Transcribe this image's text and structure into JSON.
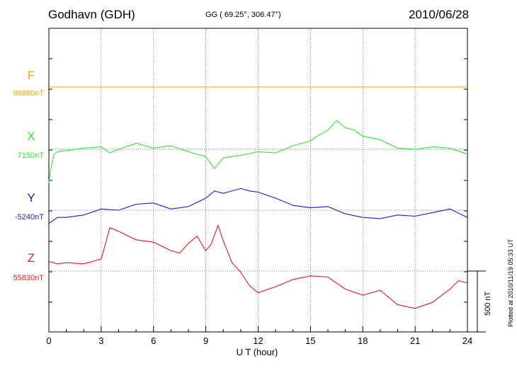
{
  "header": {
    "station": "Godhavn (GDH)",
    "coords": "GG ( 69.25°, 306.47°)",
    "date": "2010/06/28"
  },
  "footer": {
    "plotted": "Plotted at 2010/11/19 05:33 UT",
    "scale_bar": "500 nT"
  },
  "colors": {
    "F": "#f2a900",
    "X": "#33e633",
    "Y": "#1a1acc",
    "Z": "#e61a1a"
  },
  "chart_data": {
    "type": "line",
    "title": "Godhavn (GDH)",
    "xlabel": "U T (hour)",
    "ylabel": "",
    "xlim": [
      0,
      24
    ],
    "xticks": [
      "0",
      "3",
      "6",
      "9",
      "12",
      "15",
      "18",
      "21",
      "24"
    ],
    "grid": true,
    "units_per_division_nT": 500,
    "series": [
      {
        "name": "F",
        "baseline_label": "88880nT",
        "baseline_nT": 88880,
        "x": [
          0,
          24
        ],
        "y": [
          0,
          0
        ]
      },
      {
        "name": "X",
        "baseline_label": "7150nT",
        "baseline_nT": 7150,
        "x": [
          0,
          0.1,
          0.3,
          0.5,
          1,
          2,
          3,
          3.5,
          4,
          5,
          6,
          7,
          8,
          9,
          9.5,
          10,
          11,
          12,
          13,
          14,
          15,
          15.5,
          16,
          16.5,
          17,
          17.5,
          18,
          19,
          20,
          21,
          22,
          23,
          24
        ],
        "y": [
          -280,
          -170,
          -40,
          -20,
          -10,
          10,
          20,
          -30,
          0,
          50,
          10,
          30,
          -20,
          -60,
          -160,
          -70,
          -50,
          -20,
          -30,
          30,
          70,
          120,
          160,
          240,
          180,
          160,
          110,
          80,
          10,
          0,
          20,
          10,
          -40
        ]
      },
      {
        "name": "Y",
        "baseline_label": "-5240nT",
        "baseline_nT": -5240,
        "x": [
          0,
          0.5,
          1,
          2,
          3,
          4,
          5,
          6,
          7,
          8,
          9,
          9.5,
          10,
          11,
          11.5,
          12,
          13,
          14,
          15,
          16,
          17,
          18,
          19,
          20,
          21,
          22,
          23,
          24
        ],
        "y": [
          -110,
          -60,
          -60,
          -40,
          10,
          0,
          50,
          60,
          10,
          30,
          100,
          160,
          140,
          180,
          160,
          150,
          100,
          40,
          20,
          30,
          -30,
          -60,
          -70,
          -40,
          -50,
          -20,
          10,
          -60
        ]
      },
      {
        "name": "Z",
        "baseline_label": "55830nT",
        "baseline_nT": 55830,
        "x": [
          0,
          0.5,
          1,
          2,
          3,
          3.5,
          4,
          5,
          6,
          7,
          7.5,
          8,
          8.5,
          9,
          9.3,
          9.7,
          10,
          10.5,
          11,
          11.5,
          12,
          13,
          14,
          15,
          16,
          17,
          18,
          19,
          20,
          21,
          22,
          23,
          23.5,
          24
        ],
        "y": [
          80,
          60,
          70,
          60,
          100,
          360,
          330,
          260,
          240,
          170,
          150,
          230,
          290,
          170,
          220,
          380,
          250,
          70,
          -10,
          -120,
          -180,
          -130,
          -70,
          -40,
          -50,
          -150,
          -200,
          -160,
          -280,
          -310,
          -260,
          -150,
          -80,
          -100
        ]
      }
    ]
  }
}
